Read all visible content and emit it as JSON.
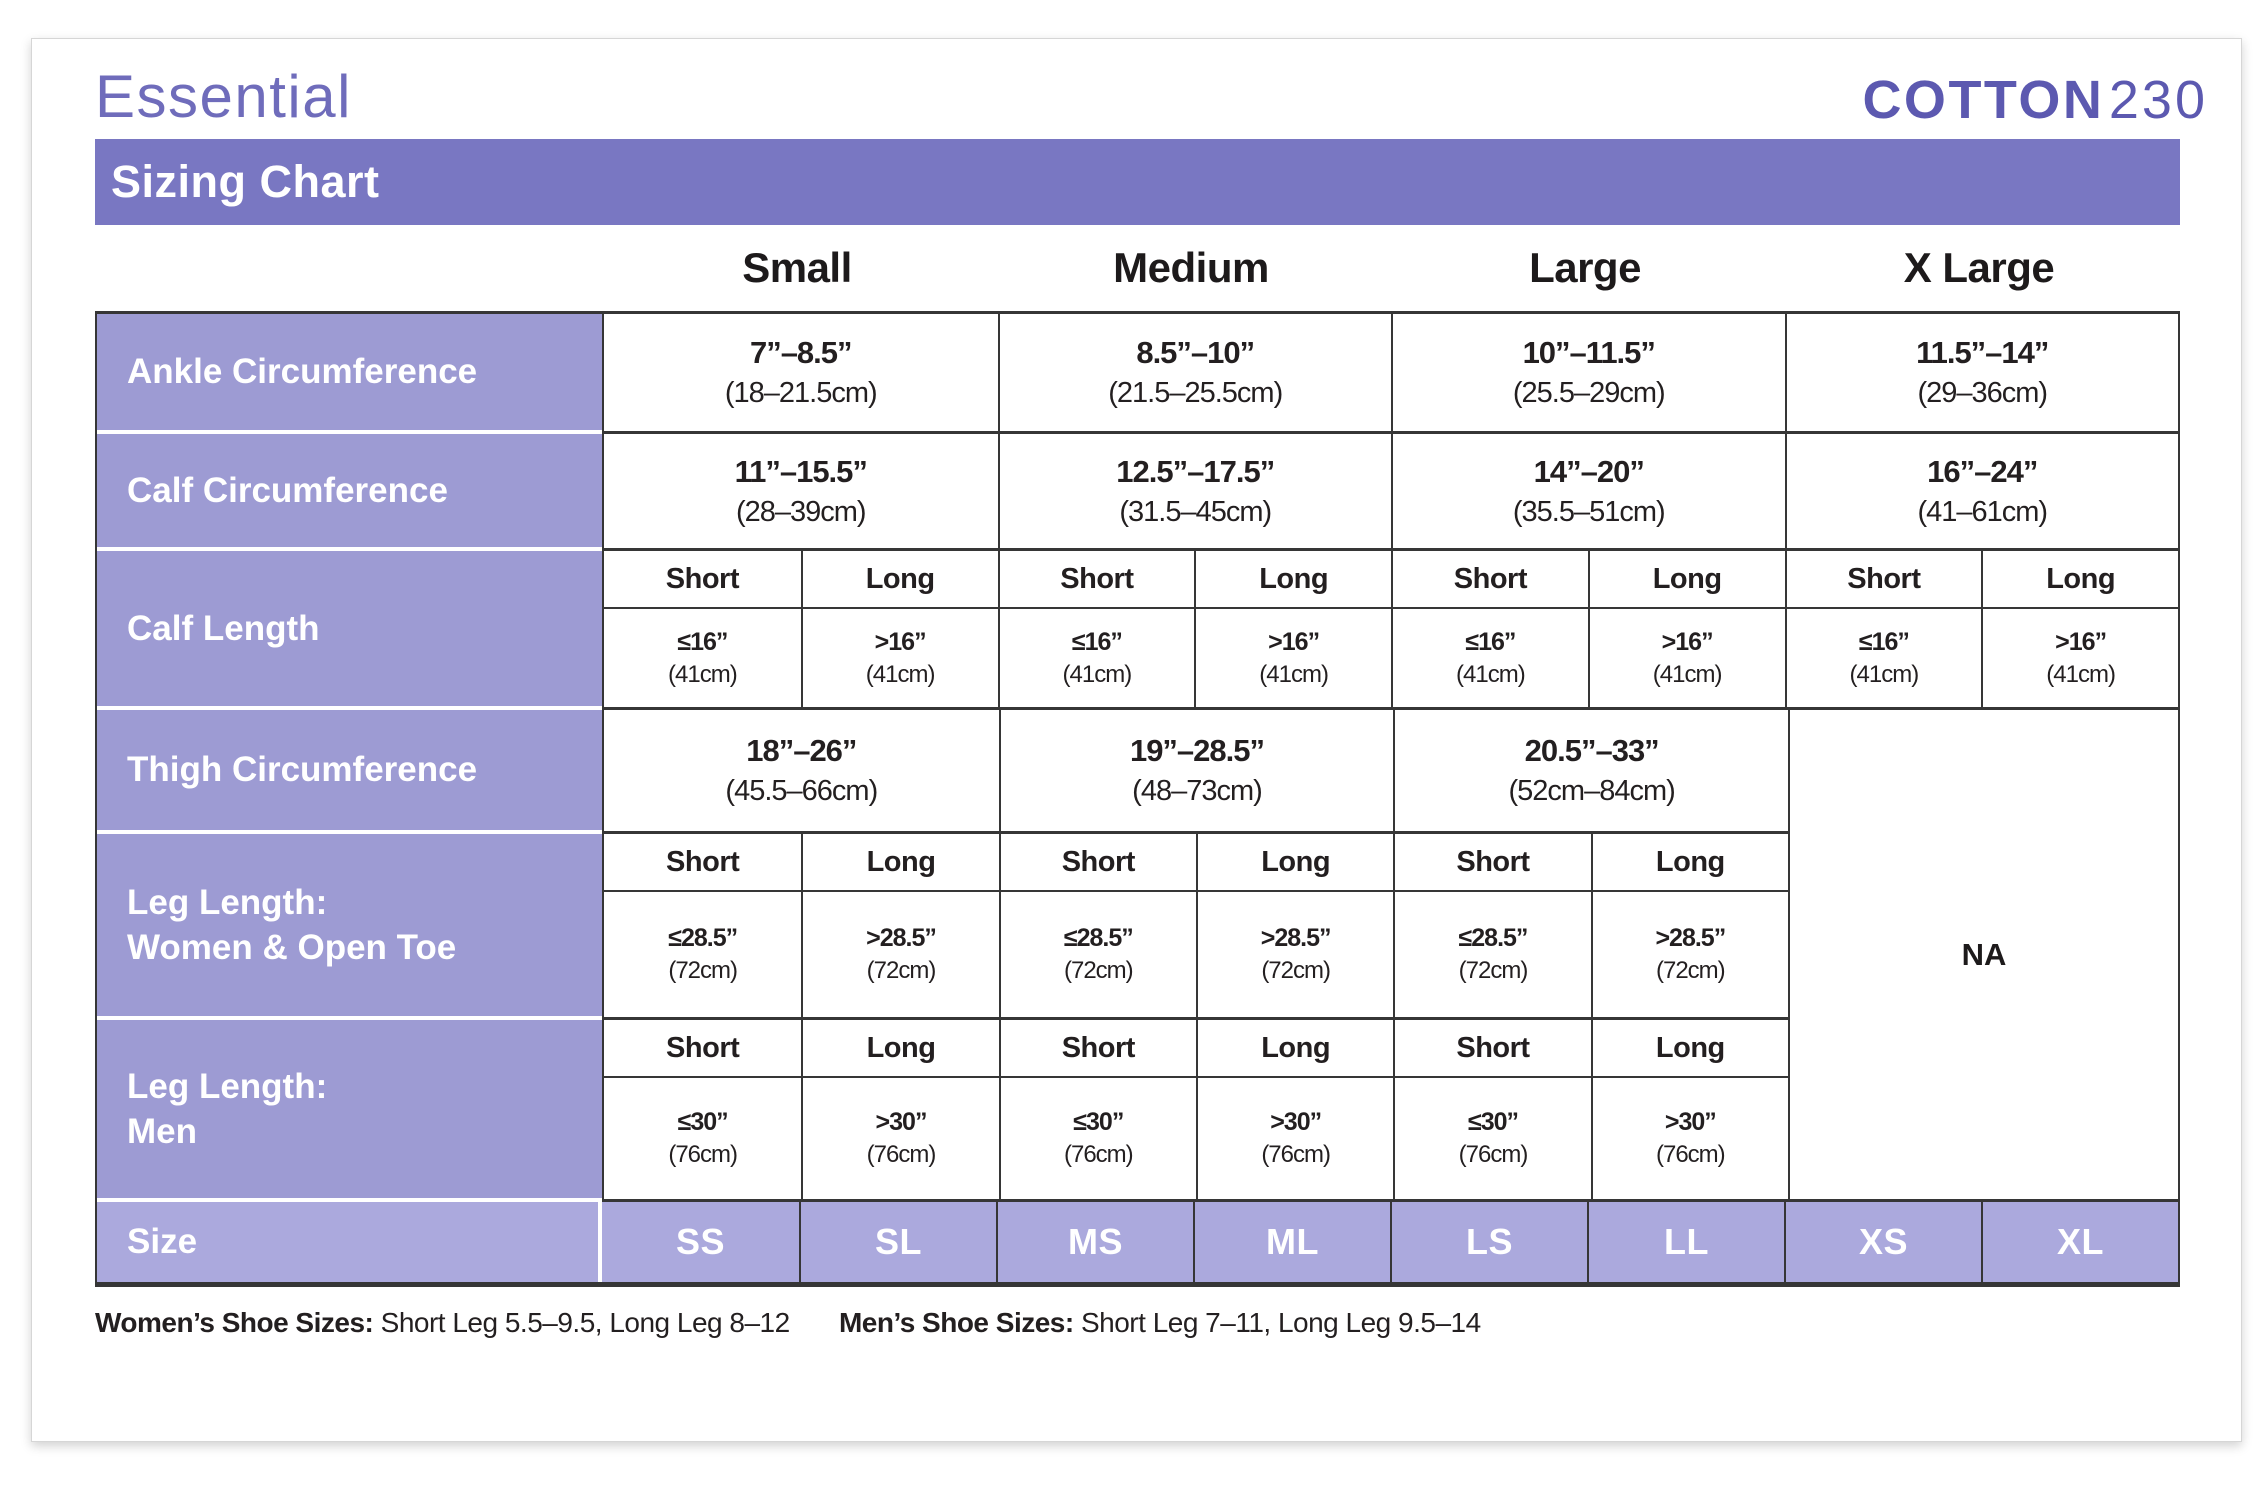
{
  "header": {
    "product_line": "Essential",
    "brand_bold": "COTTON",
    "brand_number": "230",
    "banner_title": "Sizing Chart"
  },
  "size_columns": [
    "Small",
    "Medium",
    "Large",
    "X Large"
  ],
  "sub_labels": {
    "short": "Short",
    "long": "Long"
  },
  "table": {
    "ankle": {
      "label": "Ankle Circumference",
      "values": [
        {
          "in": "7”–8.5”",
          "cm": "(18–21.5cm)"
        },
        {
          "in": "8.5”–10”",
          "cm": "(21.5–25.5cm)"
        },
        {
          "in": "10”–11.5”",
          "cm": "(25.5–29cm)"
        },
        {
          "in": "11.5”–14”",
          "cm": "(29–36cm)"
        }
      ]
    },
    "calf_circumference": {
      "label": "Calf Circumference",
      "values": [
        {
          "in": "11”–15.5”",
          "cm": "(28–39cm)"
        },
        {
          "in": "12.5”–17.5”",
          "cm": "(31.5–45cm)"
        },
        {
          "in": "14”–20”",
          "cm": "(35.5–51cm)"
        },
        {
          "in": "16”–24”",
          "cm": "(41–61cm)"
        }
      ]
    },
    "calf_length": {
      "label": "Calf Length",
      "short_value": {
        "in": "≤16”",
        "cm": "(41cm)"
      },
      "long_value": {
        "in": ">16”",
        "cm": "(41cm)"
      }
    },
    "thigh": {
      "label": "Thigh Circumference",
      "values": [
        {
          "in": "18”–26”",
          "cm": "(45.5–66cm)"
        },
        {
          "in": "19”–28.5”",
          "cm": "(48–73cm)"
        },
        {
          "in": "20.5”–33”",
          "cm": "(52cm–84cm)"
        }
      ],
      "xlarge_na": "NA"
    },
    "leg_length_women": {
      "label_line1": "Leg Length:",
      "label_line2": "Women & Open Toe",
      "short_value": {
        "in": "≤28.5”",
        "cm": "(72cm)"
      },
      "long_value": {
        "in": ">28.5”",
        "cm": "(72cm)"
      }
    },
    "leg_length_men": {
      "label_line1": "Leg Length:",
      "label_line2": "Men",
      "short_value": {
        "in": "≤30”",
        "cm": "(76cm)"
      },
      "long_value": {
        "in": ">30”",
        "cm": "(76cm)"
      }
    },
    "size_row": {
      "label": "Size",
      "codes": [
        "SS",
        "SL",
        "MS",
        "ML",
        "LS",
        "LL",
        "XS",
        "XL"
      ]
    }
  },
  "footnotes": {
    "women_label": "Women’s Shoe Sizes:",
    "women_value": "Short Leg 5.5–9.5, Long Leg 8–12",
    "men_label": "Men’s Shoe Sizes:",
    "men_value": "Short Leg 7–11, Long Leg 9.5–14"
  },
  "colors": {
    "banner_purple": "#7977c2",
    "row_label_purple": "#9d9bd3",
    "size_row_purple": "#aba9dd",
    "brand_purple": "#5c59b0",
    "title_purple": "#6f6cbb",
    "text_dark": "#231f20"
  }
}
